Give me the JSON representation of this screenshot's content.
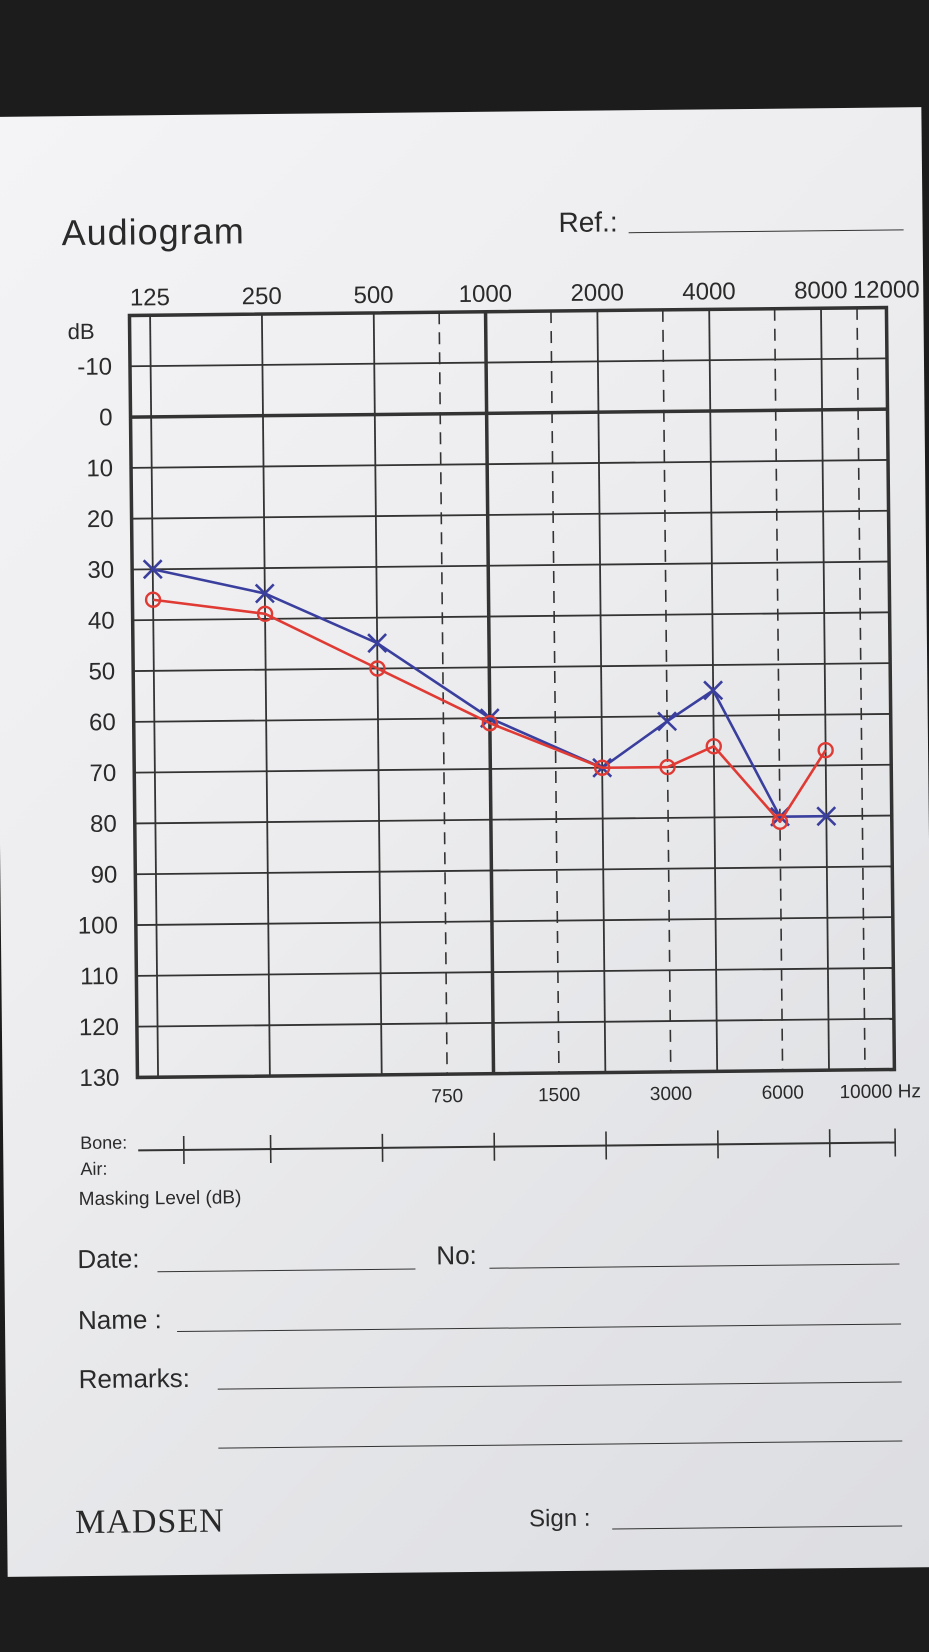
{
  "form": {
    "title": "Audiogram",
    "ref_label": "Ref.:",
    "bone_label": "Bone:",
    "air_label": "Air:",
    "masking_label": "Masking Level (dB)",
    "date_label": "Date:",
    "no_label": "No:",
    "name_label": "Name :",
    "remarks_label": "Remarks:",
    "sign_label": "Sign :",
    "brand": "MADSEN"
  },
  "chart_data": {
    "type": "line",
    "y_unit_label": "dB",
    "x_unit_label": "10000 Hz",
    "x_scale": "log",
    "y_inverted": true,
    "ylim": [
      -20,
      130
    ],
    "xlim": [
      110,
      12000
    ],
    "x_major_ticks": [
      125,
      250,
      500,
      1000,
      2000,
      4000,
      8000,
      12000
    ],
    "x_major_tick_labels": [
      "125",
      "250",
      "500",
      "1000",
      "2000",
      "4000",
      "8000",
      "12000"
    ],
    "x_minor_ticks": [
      750,
      1500,
      3000,
      6000,
      10000
    ],
    "x_minor_tick_labels": [
      "750",
      "1500",
      "3000",
      "6000",
      "10000 Hz"
    ],
    "y_ticks": [
      -10,
      0,
      10,
      20,
      30,
      40,
      50,
      60,
      70,
      80,
      90,
      100,
      110,
      120,
      130
    ],
    "y_tick_labels": [
      "-10",
      "0",
      "10",
      "20",
      "30",
      "40",
      "50",
      "60",
      "70",
      "80",
      "90",
      "100",
      "110",
      "120",
      "130"
    ],
    "grid": true,
    "series": [
      {
        "color": "#3a3f9e",
        "marker": "x",
        "x": [
          125,
          250,
          500,
          1000,
          2000,
          3000,
          4000,
          6000,
          8000
        ],
        "y": [
          30,
          35,
          45,
          60,
          70,
          61,
          55,
          80,
          80
        ]
      },
      {
        "color": "#e03a34",
        "marker": "o",
        "x": [
          125,
          250,
          500,
          1000,
          2000,
          3000,
          4000,
          6000,
          8000
        ],
        "y": [
          36,
          39,
          50,
          61,
          70,
          70,
          66,
          81,
          67
        ]
      }
    ]
  },
  "colors": {
    "ink": "#333333",
    "right_ear": "#e03a34",
    "left_ear": "#3a3f9e"
  }
}
